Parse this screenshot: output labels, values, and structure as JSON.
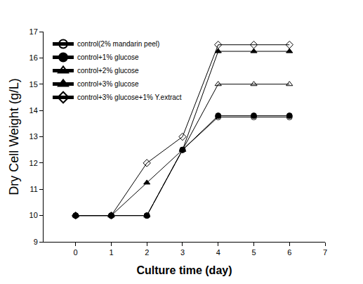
{
  "chart_data": {
    "type": "line",
    "x_label": "Culture time (day)",
    "y_label": "Dry Cell Weight (g/L)",
    "x": [
      0,
      1,
      2,
      3,
      4,
      5,
      6
    ],
    "series": [
      {
        "name": "control(2% mandarin peel)",
        "color": "#000000",
        "marker": "circle-open",
        "line_style": "solid",
        "values": [
          10,
          10,
          10,
          12.5,
          13.75,
          13.75,
          13.75
        ]
      },
      {
        "name": "control+1% glucose",
        "color": "#000000",
        "marker": "circle",
        "line_style": "solid",
        "values": [
          10,
          10,
          10,
          12.5,
          13.8,
          13.8,
          13.8
        ]
      },
      {
        "name": "control+2% glucose",
        "color": "#000000",
        "marker": "triangle-up-open",
        "line_style": "solid",
        "values": [
          10,
          10,
          10,
          12.5,
          15,
          15,
          15
        ]
      },
      {
        "name": "control+3% glucose",
        "color": "#000000",
        "marker": "triangle-up",
        "line_style": "solid",
        "values": [
          10,
          10,
          11.25,
          12.5,
          16.25,
          16.25,
          16.25
        ]
      },
      {
        "name": "control+3% glucose+1% Y.extract",
        "color": "#000000",
        "marker": "diamond-open",
        "line_style": "solid",
        "values": [
          10,
          10,
          12,
          13,
          16.5,
          16.5,
          16.5
        ]
      }
    ],
    "xlim": [
      -0.9,
      7
    ],
    "xticks": [
      0,
      1,
      2,
      3,
      4,
      5,
      6,
      7
    ],
    "ylim": [
      9,
      17
    ],
    "yticks": [
      9,
      10,
      11,
      12,
      13,
      14,
      15,
      16,
      17
    ],
    "grid": false,
    "legend": "upper left"
  }
}
